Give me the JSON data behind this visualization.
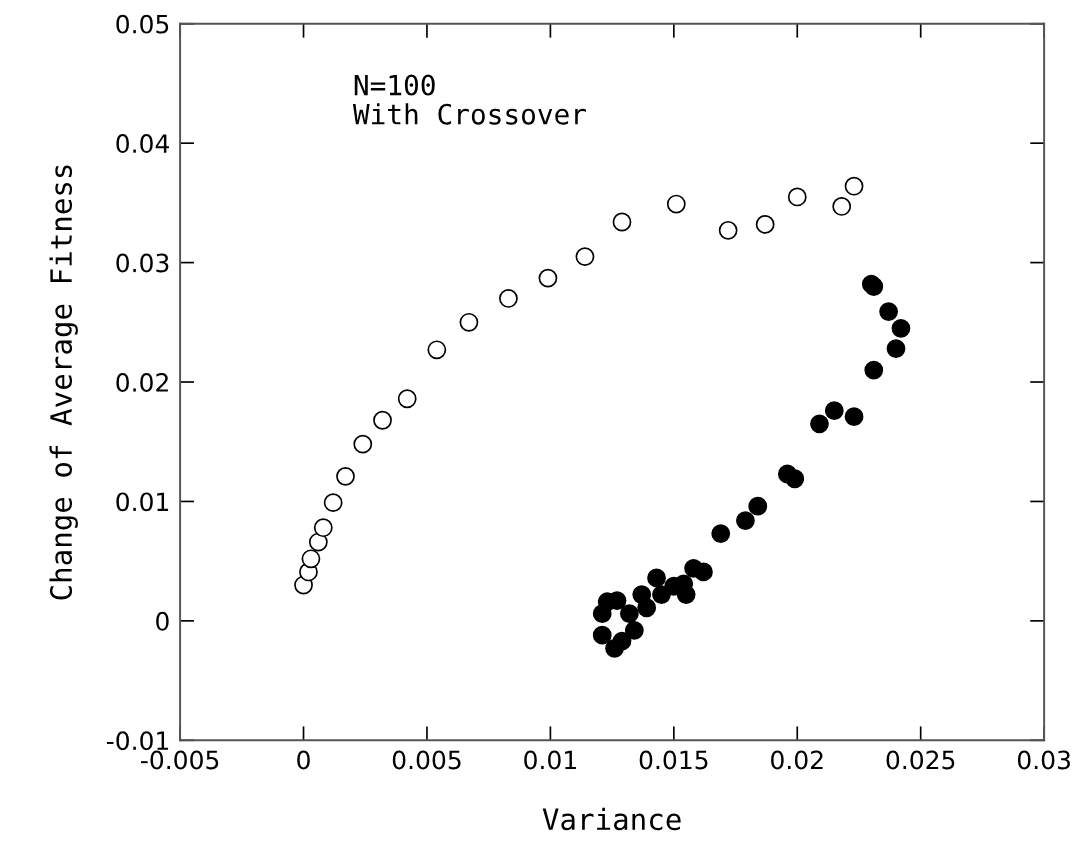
{
  "chart_data": {
    "type": "scatter",
    "xlabel": "Variance",
    "ylabel": "Change of Average Fitness",
    "annotations": [
      "N=100\nWith Crossover"
    ],
    "xlim": [
      -0.005,
      0.03
    ],
    "xticks": [
      -0.005,
      0,
      0.005,
      0.01,
      0.015,
      0.02,
      0.025,
      0.03
    ],
    "ylim": [
      -0.01,
      0.05
    ],
    "yticks": [
      -0.01,
      0,
      0.01,
      0.02,
      0.03,
      0.04,
      0.05
    ],
    "grid": false,
    "legend": false,
    "marker": "circle",
    "series": [
      {
        "color": "#ffffff",
        "x": [
          0.0,
          0.0002,
          0.0003,
          0.0006,
          0.0008,
          0.0012,
          0.0017,
          0.0024,
          0.0032,
          0.0042,
          0.0054,
          0.0067,
          0.0083,
          0.0099,
          0.0114,
          0.0129,
          0.0151,
          0.0172,
          0.0187,
          0.02,
          0.0218,
          0.0223
        ],
        "values": [
          0.003,
          0.0041,
          0.0052,
          0.0066,
          0.0078,
          0.0099,
          0.0121,
          0.0148,
          0.0168,
          0.0186,
          0.0227,
          0.025,
          0.027,
          0.0287,
          0.0305,
          0.0334,
          0.0349,
          0.0327,
          0.0332,
          0.0355,
          0.0347,
          0.0364
        ]
      },
      {
        "color": "#000000",
        "x": [
          0.023,
          0.0231,
          0.0237,
          0.0242,
          0.024,
          0.0231,
          0.0209,
          0.0215,
          0.0223,
          0.0196,
          0.0199,
          0.0184,
          0.0179,
          0.0169,
          0.0162,
          0.0158,
          0.0155,
          0.0154,
          0.015,
          0.0143,
          0.0145,
          0.0139,
          0.0137,
          0.0134,
          0.0123,
          0.0127,
          0.0121,
          0.0132,
          0.0121,
          0.0126,
          0.0129
        ],
        "values": [
          0.0282,
          0.028,
          0.0259,
          0.0245,
          0.0228,
          0.021,
          0.0165,
          0.0176,
          0.0171,
          0.0123,
          0.0119,
          0.0096,
          0.0084,
          0.0073,
          0.0041,
          0.0044,
          0.0022,
          0.0031,
          0.0029,
          0.0036,
          0.0022,
          0.0011,
          0.0022,
          -0.0008,
          0.0016,
          0.0017,
          0.0006,
          0.0006,
          -0.0012,
          -0.0023,
          -0.0017
        ]
      }
    ]
  }
}
